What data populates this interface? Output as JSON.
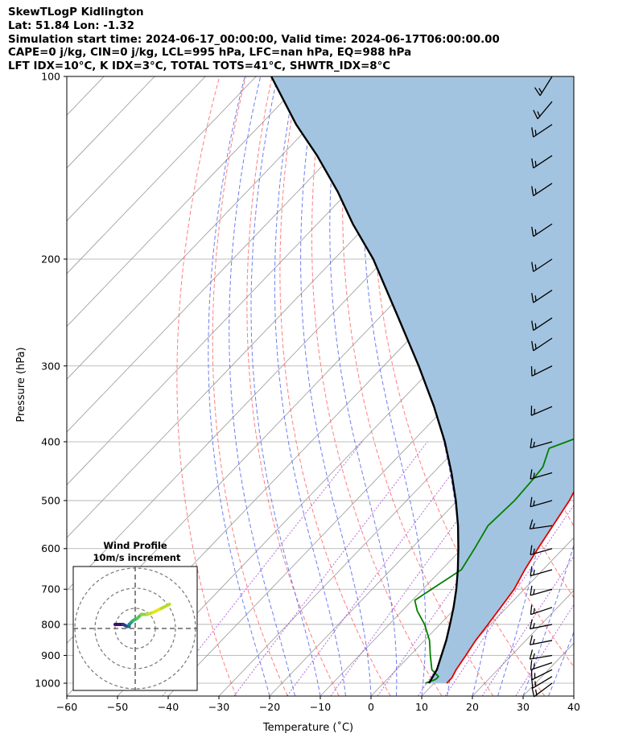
{
  "header": {
    "line1": "SkewTLogP Kidlington",
    "line2": "Lat: 51.84   Lon: -1.32",
    "line3": "Simulation start time: 2024-06-17_00:00:00, Valid time: 2024-06-17T06:00:00.00",
    "line4": "CAPE=0 j/kg, CIN=0 j/kg, LCL=995 hPa, LFC=nan hPa, EQ=988 hPa",
    "line5": "LFT IDX=10°C, K IDX=3°C, TOTAL TOTS=41°C, SHWTR_IDX=8°C"
  },
  "colors": {
    "temperature": "#e00000",
    "dewpoint": "#008000",
    "parcel": "#000000",
    "cape_fill": "#a3c4e0",
    "dry_adiabat": "#ff6666",
    "moist_adiabat": "#5566ee",
    "mixing_ratio": "#9933cc",
    "isotherm": "#999999",
    "isobar": "#aaaaaa"
  },
  "chart_data": [
    {
      "type": "skewt",
      "xlabel": "Temperature (˚C)",
      "ylabel": "Pressure (hPa)",
      "xlim": [
        -60,
        40
      ],
      "ylim": [
        1050,
        100
      ],
      "y_scale": "log",
      "x_ticks": [
        -60,
        -50,
        -40,
        -30,
        -20,
        -10,
        0,
        10,
        20,
        30,
        40
      ],
      "x_tick_labels": [
        "−60",
        "−50",
        "−40",
        "−30",
        "−20",
        "−10",
        "0",
        "10",
        "20",
        "30",
        "40"
      ],
      "y_ticks": [
        1000,
        900,
        800,
        700,
        600,
        500,
        400,
        300,
        200,
        100
      ],
      "y_tick_labels": [
        "1000",
        "900",
        "800",
        "700",
        "600",
        "500",
        "400",
        "300",
        "200",
        "100"
      ],
      "grid": true,
      "series": [
        {
          "key": "temperature",
          "points": [
            [
              12.5,
              1000
            ],
            [
              12.5,
              980
            ],
            [
              11.8,
              950
            ],
            [
              11,
              900
            ],
            [
              10.1,
              850
            ],
            [
              9.5,
              800
            ],
            [
              8.8,
              750
            ],
            [
              8,
              700
            ],
            [
              6.4,
              650
            ],
            [
              5,
              600
            ],
            [
              3.6,
              550
            ],
            [
              2.1,
              500
            ],
            [
              -0.3,
              450
            ],
            [
              -3.1,
              400
            ],
            [
              -4.1,
              380
            ],
            [
              -6.9,
              350
            ],
            [
              -8.1,
              330
            ],
            [
              -7.7,
              300
            ],
            [
              -6.2,
              270
            ],
            [
              -1.5,
              250
            ],
            [
              5,
              220
            ],
            [
              11.7,
              200
            ],
            [
              15.3,
              180
            ],
            [
              17.3,
              165
            ],
            [
              19.3,
              145
            ],
            [
              20,
              128
            ],
            [
              21.2,
              115
            ],
            [
              22,
              100
            ]
          ]
        },
        {
          "key": "dewpoint",
          "points": [
            [
              8.3,
              1000
            ],
            [
              9.6,
              985
            ],
            [
              9.6,
              975
            ],
            [
              7,
              950
            ],
            [
              4,
              900
            ],
            [
              1,
              850
            ],
            [
              -3,
              800
            ],
            [
              -7,
              760
            ],
            [
              -9.5,
              730
            ],
            [
              -8.3,
              700
            ],
            [
              -6.1,
              650
            ],
            [
              -7.5,
              600
            ],
            [
              -9.2,
              550
            ],
            [
              -8.7,
              500
            ],
            [
              -9.1,
              460
            ],
            [
              -9.5,
              440
            ],
            [
              -11.8,
              410
            ],
            [
              -6.2,
              385
            ],
            [
              -8.4,
              360
            ],
            [
              -9.5,
              340
            ],
            [
              -16.5,
              290
            ],
            [
              -18.3,
              270
            ],
            [
              -19.7,
              235
            ],
            [
              -22.5,
              220
            ],
            [
              -24.8,
              200
            ],
            [
              -27.7,
              187
            ],
            [
              -26.7,
              170
            ],
            [
              -23.8,
              150
            ],
            [
              -19.9,
              130
            ],
            [
              -14.1,
              110
            ],
            [
              -10.5,
              100
            ]
          ]
        },
        {
          "key": "parcel",
          "points": [
            [
              9,
              1000
            ],
            [
              8,
              950
            ],
            [
              6.2,
              900
            ],
            [
              4.3,
              850
            ],
            [
              2,
              800
            ],
            [
              -0.5,
              750
            ],
            [
              -3.4,
              700
            ],
            [
              -6.8,
              650
            ],
            [
              -10.7,
              600
            ],
            [
              -15.1,
              550
            ],
            [
              -20.3,
              500
            ],
            [
              -26.4,
              450
            ],
            [
              -33.6,
              400
            ],
            [
              -42.4,
              350
            ],
            [
              -53.1,
              300
            ],
            [
              -66.2,
              250
            ],
            [
              -82.3,
              200
            ],
            [
              -93,
              175
            ],
            [
              -102,
              155
            ],
            [
              -113,
              135
            ],
            [
              -123,
              120
            ],
            [
              -137,
              100
            ]
          ]
        }
      ],
      "wind_barbs": [
        {
          "p": 1000,
          "u": 4,
          "v": 3
        },
        {
          "p": 975,
          "u": 5,
          "v": 3
        },
        {
          "p": 950,
          "u": 6,
          "v": 3
        },
        {
          "p": 925,
          "u": 6,
          "v": 2
        },
        {
          "p": 900,
          "u": 6,
          "v": 1
        },
        {
          "p": 850,
          "u": 5,
          "v": 1
        },
        {
          "p": 800,
          "u": 5,
          "v": 1
        },
        {
          "p": 750,
          "u": 6,
          "v": 2
        },
        {
          "p": 700,
          "u": 7,
          "v": 2
        },
        {
          "p": 650,
          "u": 7,
          "v": 2
        },
        {
          "p": 600,
          "u": 7,
          "v": 2
        },
        {
          "p": 550,
          "u": 7,
          "v": 1
        },
        {
          "p": 500,
          "u": 7,
          "v": 2
        },
        {
          "p": 450,
          "u": 7,
          "v": 2
        },
        {
          "p": 400,
          "u": 7,
          "v": 2
        },
        {
          "p": 350,
          "u": 7,
          "v": 3
        },
        {
          "p": 300,
          "u": 6,
          "v": 3
        },
        {
          "p": 270,
          "u": 6,
          "v": 4
        },
        {
          "p": 250,
          "u": 6,
          "v": 4
        },
        {
          "p": 225,
          "u": 6,
          "v": 4
        },
        {
          "p": 200,
          "u": 6,
          "v": 4
        },
        {
          "p": 175,
          "u": 6,
          "v": 4
        },
        {
          "p": 150,
          "u": 6,
          "v": 4
        },
        {
          "p": 135,
          "u": 6,
          "v": 4
        },
        {
          "p": 120,
          "u": 6,
          "v": 4
        },
        {
          "p": 110,
          "u": 5,
          "v": 6
        },
        {
          "p": 100,
          "u": 5,
          "v": 8
        }
      ]
    },
    {
      "type": "hodograph",
      "title": "Wind Profile",
      "subtitle": "10m/s increment",
      "ring_step": 10,
      "rings": [
        10,
        20,
        30
      ],
      "points": [
        [
          -10,
          2
        ],
        [
          -6,
          2
        ],
        [
          -4,
          1
        ],
        [
          -3,
          1
        ],
        [
          -3,
          2
        ],
        [
          -2,
          3
        ],
        [
          -1,
          4
        ],
        [
          1,
          5
        ],
        [
          3,
          7
        ],
        [
          6,
          7
        ],
        [
          9,
          8
        ],
        [
          13,
          10
        ],
        [
          17,
          12
        ]
      ]
    }
  ]
}
